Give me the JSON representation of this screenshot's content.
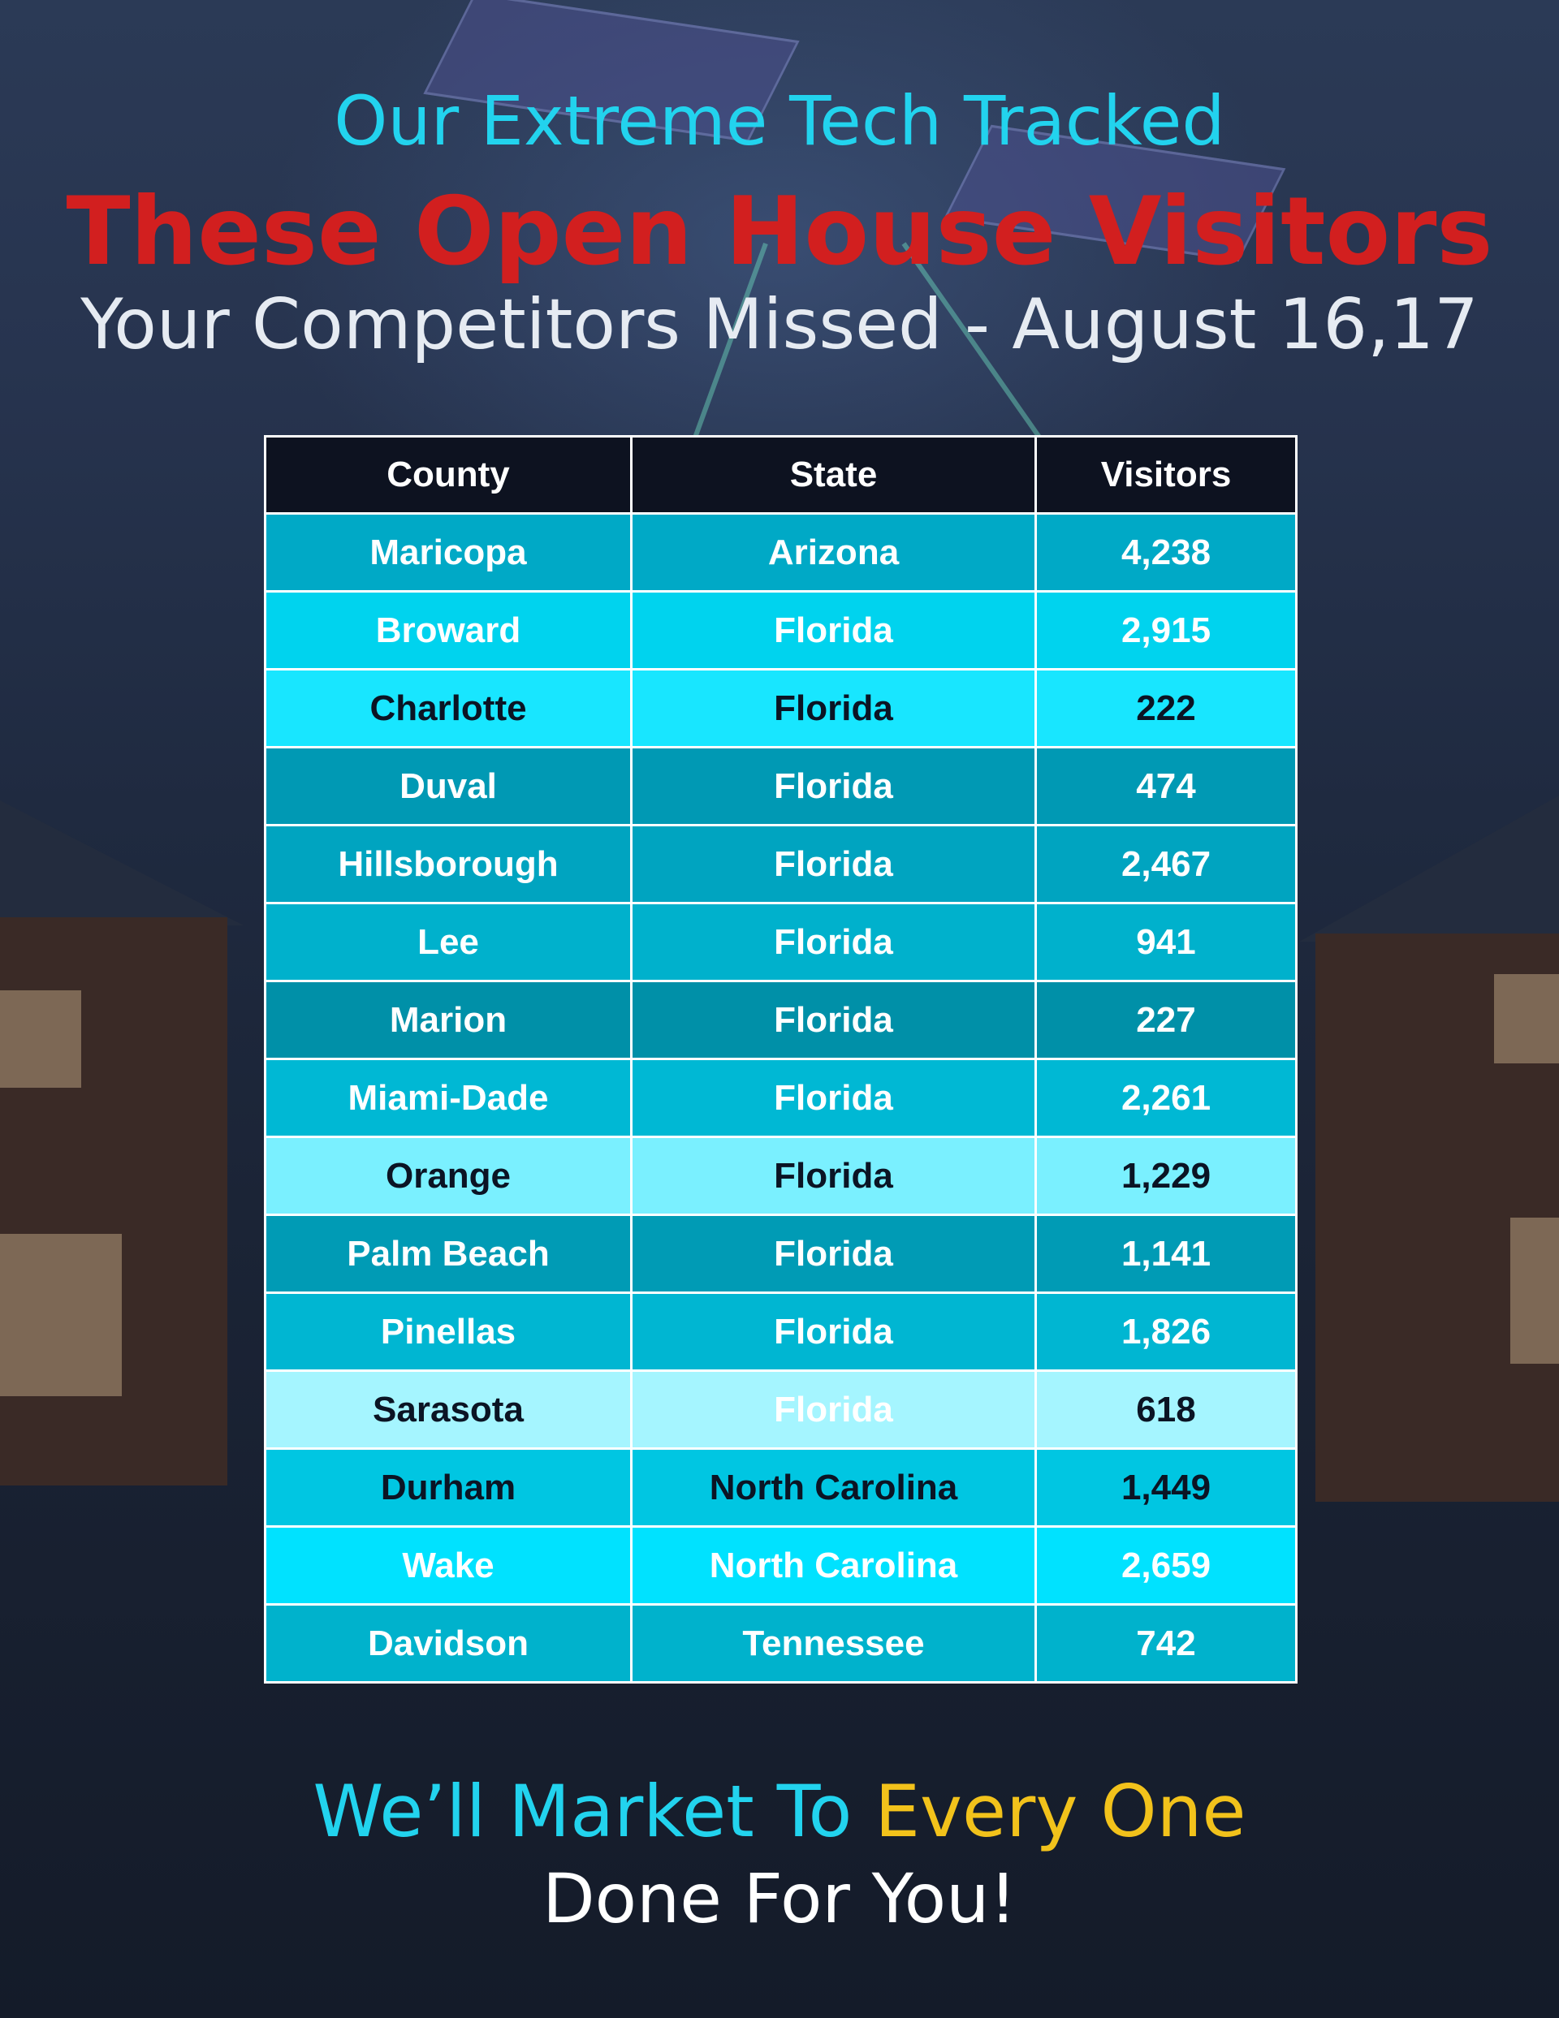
{
  "header": {
    "line1": "Our Extreme Tech Tracked",
    "line2": "These Open House Visitors",
    "line3": "Your Competitors Missed - August 16,17"
  },
  "table": {
    "columns": [
      "County",
      "State",
      "Visitors"
    ],
    "rows": [
      {
        "county": "Maricopa",
        "state": "Arizona",
        "visitors": "4,238",
        "bg": "#00a9c6",
        "fg": "#ffffff",
        "state_fg": "#ffffff"
      },
      {
        "county": "Broward",
        "state": "Florida",
        "visitors": "2,915",
        "bg": "#00d3ee",
        "fg": "#ffffff",
        "state_fg": "#ffffff"
      },
      {
        "county": "Charlotte",
        "state": "Florida",
        "visitors": "222",
        "bg": "#18e6ff",
        "fg": "#0b1424",
        "state_fg": "#0b1424"
      },
      {
        "county": "Duval",
        "state": "Florida",
        "visitors": "474",
        "bg": "#0099b4",
        "fg": "#ffffff",
        "state_fg": "#ffffff"
      },
      {
        "county": "Hillsborough",
        "state": "Florida",
        "visitors": "2,467",
        "bg": "#00a4c0",
        "fg": "#ffffff",
        "state_fg": "#ffffff"
      },
      {
        "county": "Lee",
        "state": "Florida",
        "visitors": "941",
        "bg": "#00b1cc",
        "fg": "#ffffff",
        "state_fg": "#ffffff"
      },
      {
        "county": "Marion",
        "state": "Florida",
        "visitors": "227",
        "bg": "#0090a8",
        "fg": "#ffffff",
        "state_fg": "#ffffff"
      },
      {
        "county": "Miami-Dade",
        "state": "Florida",
        "visitors": "2,261",
        "bg": "#00b8d4",
        "fg": "#ffffff",
        "state_fg": "#ffffff"
      },
      {
        "county": "Orange",
        "state": "Florida",
        "visitors": "1,229",
        "bg": "#7af0ff",
        "fg": "#0b1424",
        "state_fg": "#0b1424"
      },
      {
        "county": "Palm Beach",
        "state": "Florida",
        "visitors": "1,141",
        "bg": "#009bb5",
        "fg": "#ffffff",
        "state_fg": "#ffffff"
      },
      {
        "county": "Pinellas",
        "state": "Florida",
        "visitors": "1,826",
        "bg": "#00b6d2",
        "fg": "#ffffff",
        "state_fg": "#ffffff"
      },
      {
        "county": "Sarasota",
        "state": "Florida",
        "visitors": "618",
        "bg": "#a5f5ff",
        "fg": "#0b1424",
        "state_fg": "#ffffff"
      },
      {
        "county": "Durham",
        "state": "North Carolina",
        "visitors": "1,449",
        "bg": "#00c6e2",
        "fg": "#0b1424",
        "state_fg": "#0b1424"
      },
      {
        "county": "Wake",
        "state": "North Carolina",
        "visitors": "2,659",
        "bg": "#00e2ff",
        "fg": "#ffffff",
        "state_fg": "#ffffff"
      },
      {
        "county": "Davidson",
        "state": "Tennessee",
        "visitors": "742",
        "bg": "#00b2cc",
        "fg": "#ffffff",
        "state_fg": "#ffffff"
      }
    ]
  },
  "footer": {
    "part1": "We’ll Market To ",
    "part2": "Every One",
    "line2": "Done For You!"
  },
  "colors": {
    "cyan": "#22d3ee",
    "red": "#d21f1f",
    "yellow": "#f2c21b",
    "header_bg": "#0d1220"
  }
}
